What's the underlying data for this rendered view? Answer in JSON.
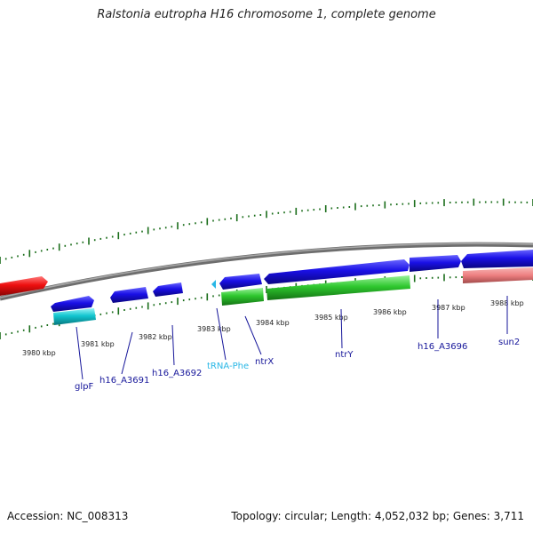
{
  "title": "Ralstonia eutropha H16 chromosome 1, complete genome",
  "footer": {
    "accession": "Accession: NC_008313",
    "topology": "Topology: circular; Length: 4,052,032 bp; Genes: 3,711"
  },
  "colors": {
    "gene": "#1a10e6",
    "rna": "#11c5cf",
    "cds_green": "#2ec72e",
    "highlight_red": "#ee0f0f",
    "pink": "#ee7f80",
    "tick": "#1a6d1a",
    "backbone": "#7f7f7f",
    "label_blue": "#16169a",
    "trna_label": "#29b7e6"
  },
  "scale_labels": [
    "3980 kbp",
    "3981 kbp",
    "3982 kbp",
    "3983 kbp",
    "3984 kbp",
    "3985 kbp",
    "3986 kbp",
    "3987 kbp",
    "3988 kbp"
  ],
  "gene_labels": [
    "glpF",
    "h16_A3691",
    "h16_A3692",
    "tRNA-Phe",
    "ntrX",
    "ntrY",
    "h16_A3696",
    "sun2"
  ]
}
